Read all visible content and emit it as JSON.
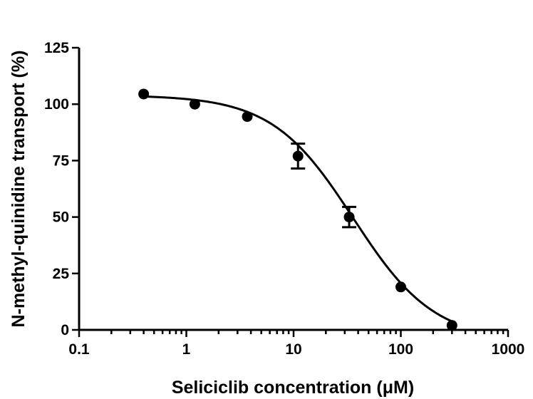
{
  "chart_data": {
    "type": "scatter",
    "xlabel": "Seliciclib concentration (μM)",
    "ylabel": "N-methyl-quinidine transport (%)",
    "xscale": "log",
    "xlim": [
      0.1,
      1000
    ],
    "ylim": [
      0,
      125
    ],
    "xticks": [
      0.1,
      1,
      10,
      100,
      1000
    ],
    "xtick_labels": [
      "0.1",
      "1",
      "10",
      "100",
      "1000"
    ],
    "yticks": [
      0,
      25,
      50,
      75,
      100,
      125
    ],
    "ytick_labels": [
      "0",
      "25",
      "50",
      "75",
      "100",
      "125"
    ],
    "grid": false,
    "points": [
      {
        "x": 0.4,
        "y": 104.5,
        "err": 0
      },
      {
        "x": 1.2,
        "y": 100,
        "err": 0
      },
      {
        "x": 3.7,
        "y": 94.5,
        "err": 0
      },
      {
        "x": 11,
        "y": 77,
        "err": 5.5
      },
      {
        "x": 33,
        "y": 50,
        "err": 4.5
      },
      {
        "x": 100,
        "y": 19,
        "err": 0
      },
      {
        "x": 300,
        "y": 2,
        "err": 0
      }
    ],
    "fit": {
      "model": "sigmoidal dose-response",
      "top": 104,
      "bottom": -5,
      "ic50": 36,
      "hill": 1.15
    }
  }
}
